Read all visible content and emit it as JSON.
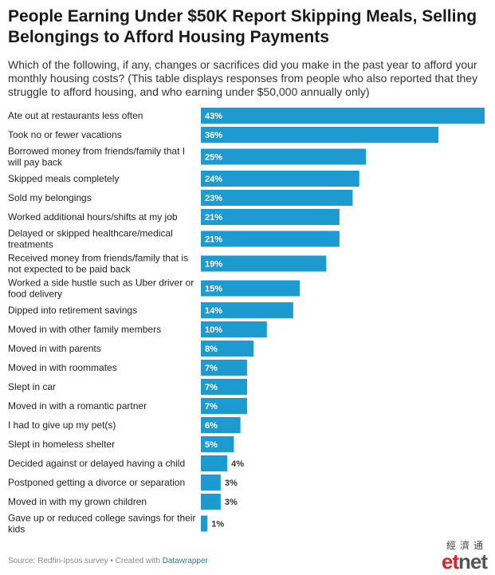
{
  "title": "People Earning Under $50K Report Skipping Meals, Selling Belongings to Afford Housing Payments",
  "subtitle": "Which of the following, if any, changes or sacrifices did you make in the past year to afford your monthly housing costs? (This table displays responses from people who also reported that they struggle to afford housing, and who earning under $50,000 annually only)",
  "colors": {
    "bar": "#1d9bd1",
    "label_inside": "#ffffff",
    "label_outside": "#333333"
  },
  "chart_data": {
    "type": "bar",
    "orientation": "horizontal",
    "categories": [
      "Ate out at restaurants less often",
      "Took no or fewer vacations",
      "Borrowed money from friends/family that I will pay back",
      "Skipped meals completely",
      "Sold my belongings",
      "Worked additional hours/shifts at my job",
      "Delayed or skipped healthcare/medical treatments",
      "Received money from friends/family that is not expected to be paid back",
      "Worked a side hustle such as Uber driver or food delivery",
      "Dipped into retirement savings",
      "Moved in with other family members",
      "Moved in with parents",
      "Moved in with roommates",
      "Slept in car",
      "Moved in with a romantic partner",
      "I had to give up my pet(s)",
      "Slept in homeless shelter",
      "Decided against or delayed having a child",
      "Postponed getting a divorce or separation",
      "Moved in with my grown children",
      "Gave up or reduced college savings for their kids"
    ],
    "values": [
      43,
      36,
      25,
      24,
      23,
      21,
      21,
      19,
      15,
      14,
      10,
      8,
      7,
      7,
      7,
      6,
      5,
      4,
      3,
      3,
      1
    ],
    "value_labels": [
      "43%",
      "36%",
      "25%",
      "24%",
      "23%",
      "21%",
      "21%",
      "19%",
      "15%",
      "14%",
      "10%",
      "8%",
      "7%",
      "7%",
      "7%",
      "6%",
      "5%",
      "4%",
      "3%",
      "3%",
      "1%"
    ],
    "xlim": [
      0,
      43
    ],
    "grid": false
  },
  "footer": {
    "source": "Source: Redfin-Ipsos survey • Created with ",
    "tool": "Datawrapper"
  },
  "logo": {
    "chinese": "經濟通",
    "en_part1": "et",
    "en_part2": "net"
  }
}
